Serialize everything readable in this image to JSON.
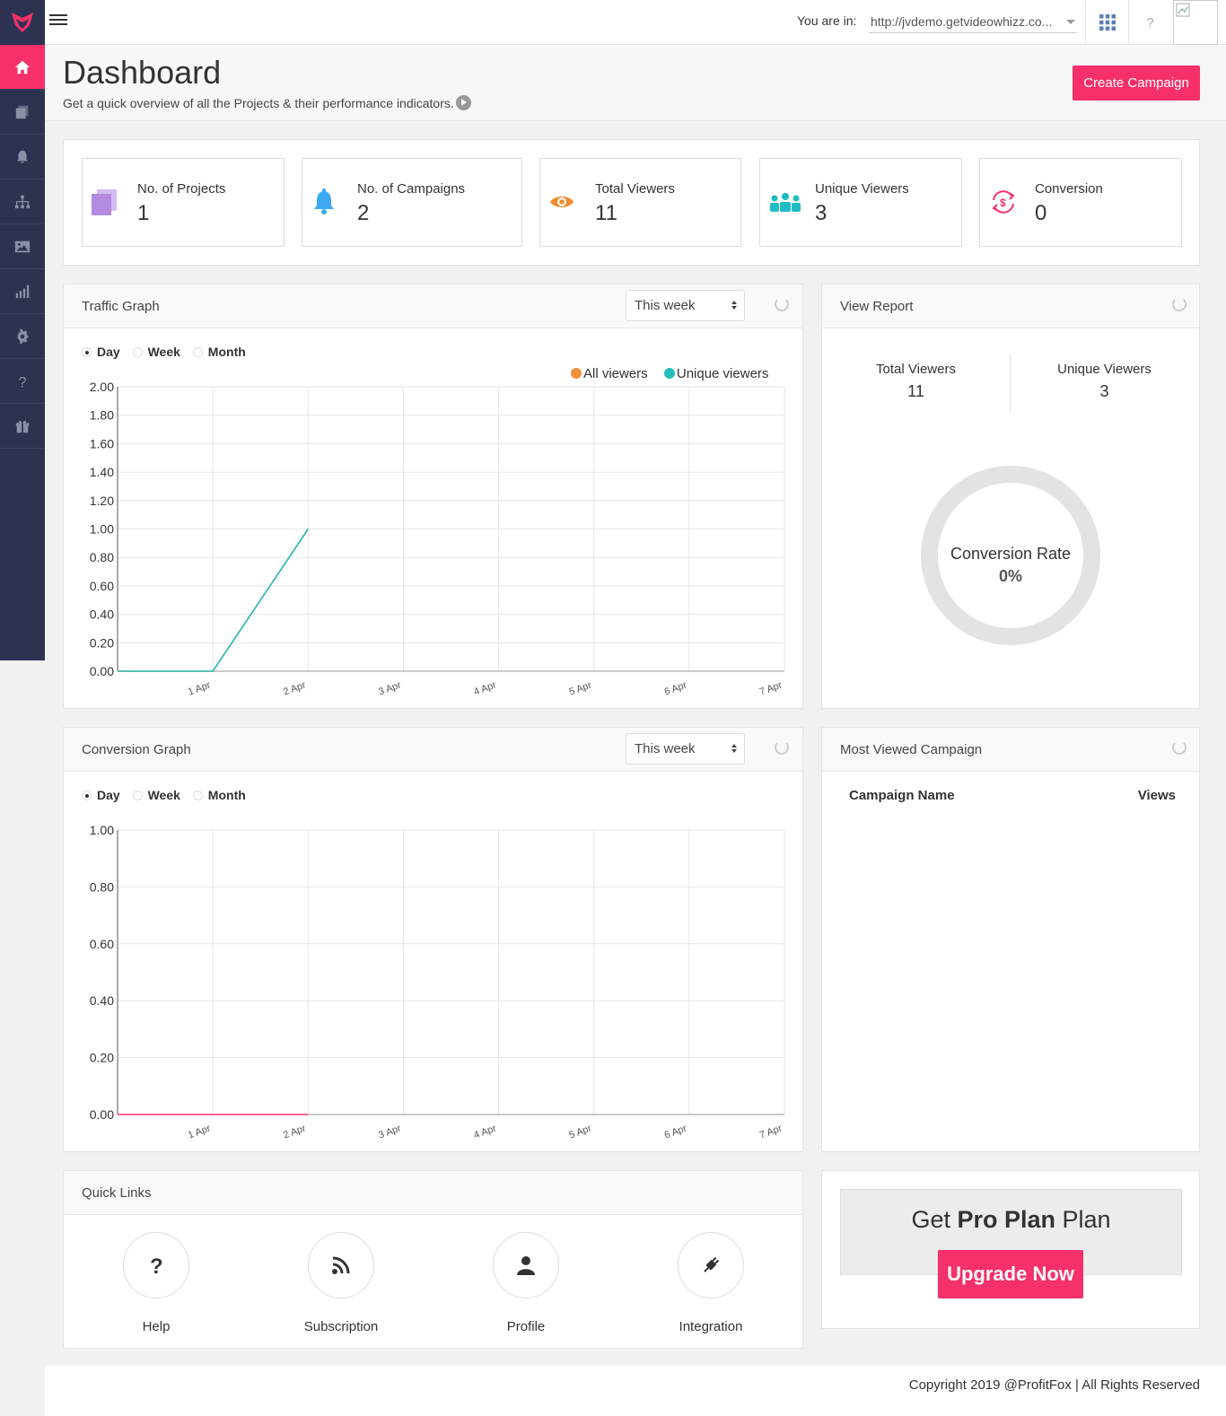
{
  "topbar": {
    "you_are_in_label": "You are in:",
    "url_value": "http://jvdemo.getvideowhizz.co...",
    "help_label": "?"
  },
  "sidebar": {
    "items": [
      {
        "icon": "home-icon",
        "active": true
      },
      {
        "icon": "projects-icon"
      },
      {
        "icon": "bell-icon"
      },
      {
        "icon": "sitemap-icon"
      },
      {
        "icon": "image-icon"
      },
      {
        "icon": "bar-chart-icon"
      },
      {
        "icon": "gear-icon"
      },
      {
        "icon": "question-icon"
      },
      {
        "icon": "gift-icon"
      }
    ]
  },
  "header": {
    "title": "Dashboard",
    "subtitle": "Get a quick overview of all the Projects & their performance indicators.",
    "create_button": "Create Campaign"
  },
  "stats": [
    {
      "label": "No. of Projects",
      "value": "1",
      "icon": "projects-icon",
      "color": "#b38be0"
    },
    {
      "label": "No. of Campaigns",
      "value": "2",
      "icon": "bell-icon",
      "color": "#3da9f0"
    },
    {
      "label": "Total Viewers",
      "value": "11",
      "icon": "eye-icon",
      "color": "#f08a2c"
    },
    {
      "label": "Unique Viewers",
      "value": "3",
      "icon": "users-icon",
      "color": "#1fbcc4"
    },
    {
      "label": "Conversion",
      "value": "0",
      "icon": "conversion-icon",
      "color": "#f5306a"
    }
  ],
  "traffic": {
    "title": "Traffic Graph",
    "period": "This week",
    "radios": [
      "Day",
      "Week",
      "Month"
    ],
    "selected": "Day",
    "legend": [
      "All viewers",
      "Unique viewers"
    ]
  },
  "conversion_graph": {
    "title": "Conversion Graph",
    "period": "This week",
    "radios": [
      "Day",
      "Week",
      "Month"
    ],
    "selected": "Day"
  },
  "view_report": {
    "title": "View Report",
    "total_label": "Total Viewers",
    "total_value": "11",
    "unique_label": "Unique Viewers",
    "unique_value": "3",
    "rate_label": "Conversion Rate",
    "rate_value": "0%"
  },
  "most_viewed": {
    "title": "Most Viewed Campaign",
    "col_name": "Campaign Name",
    "col_views": "Views"
  },
  "quick_links": {
    "title": "Quick Links",
    "items": [
      {
        "label": "Help",
        "icon": "question-icon"
      },
      {
        "label": "Subscription",
        "icon": "rss-icon"
      },
      {
        "label": "Profile",
        "icon": "user-icon"
      },
      {
        "label": "Integration",
        "icon": "plug-icon"
      }
    ]
  },
  "pro": {
    "pre": "Get ",
    "bold": "Pro Plan",
    "post": " Plan",
    "button": "Upgrade Now"
  },
  "footer": {
    "copyright": "Copyright 2019 @ProfitFox | All Rights Reserved"
  },
  "chart_data": [
    {
      "type": "line",
      "categories": [
        "1 Apr",
        "2 Apr",
        "3 Apr",
        "4 Apr",
        "5 Apr",
        "6 Apr",
        "7 Apr"
      ],
      "yticks": [
        "0.00",
        "0.20",
        "0.40",
        "0.60",
        "0.80",
        "1.00",
        "1.20",
        "1.40",
        "1.60",
        "1.80",
        "2.00"
      ],
      "ylim": [
        0,
        2
      ],
      "series": [
        {
          "name": "All viewers",
          "color": "#f0913a",
          "x": [
            "31 Mar",
            "1 Apr",
            "2 Apr"
          ],
          "values": [
            0,
            0,
            1
          ]
        },
        {
          "name": "Unique viewers",
          "color": "#26bfbf",
          "x": [
            "31 Mar",
            "1 Apr",
            "2 Apr"
          ],
          "values": [
            0,
            0,
            1
          ]
        }
      ],
      "grid": true,
      "legend": "top-right"
    },
    {
      "type": "line",
      "categories": [
        "1 Apr",
        "2 Apr",
        "3 Apr",
        "4 Apr",
        "5 Apr",
        "6 Apr",
        "7 Apr"
      ],
      "yticks": [
        "0.00",
        "0.20",
        "0.40",
        "0.60",
        "0.80",
        "1.00"
      ],
      "ylim": [
        0,
        1
      ],
      "series": [
        {
          "color": "#f5306a",
          "x": [
            "31 Mar",
            "1 Apr",
            "2 Apr"
          ],
          "values": [
            0,
            0,
            0
          ]
        }
      ],
      "grid": true
    }
  ]
}
